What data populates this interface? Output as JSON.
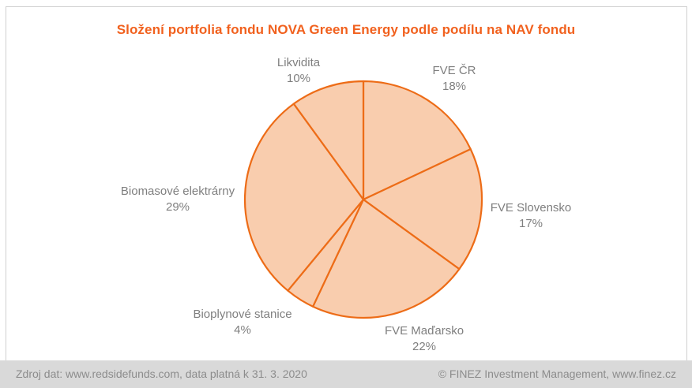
{
  "chart_data": {
    "type": "pie",
    "title": "Složení portfolia fondu NOVA Green Energy podle podílu na NAV fondu",
    "unit": "%",
    "start_angle": "top",
    "direction": "clockwise",
    "legend": "none",
    "labels_on_chart": true,
    "segments": [
      {
        "label": "FVE ČR",
        "value": 18
      },
      {
        "label": "FVE Slovensko",
        "value": 17
      },
      {
        "label": "FVE Maďarsko",
        "value": 22
      },
      {
        "label": "Bioplynové stanice",
        "value": 4
      },
      {
        "label": "Biomasové elektrárny",
        "value": 29
      },
      {
        "label": "Likvidita",
        "value": 10
      }
    ]
  },
  "footer": {
    "source_text": "Zdroj dat: www.redsidefunds.com, data platná k 31. 3. 2020",
    "copyright_text": "© FINEZ Investment Management, www.finez.cz"
  },
  "colors": {
    "title": "#F1611E",
    "slice_fill": "#F9CDAE",
    "slice_stroke": "#ED6C17",
    "label_text": "#7F7F7F",
    "footer_background": "#D9D9D9",
    "footer_text": "#8C8C8C",
    "frame_border": "#D0D0D0"
  }
}
